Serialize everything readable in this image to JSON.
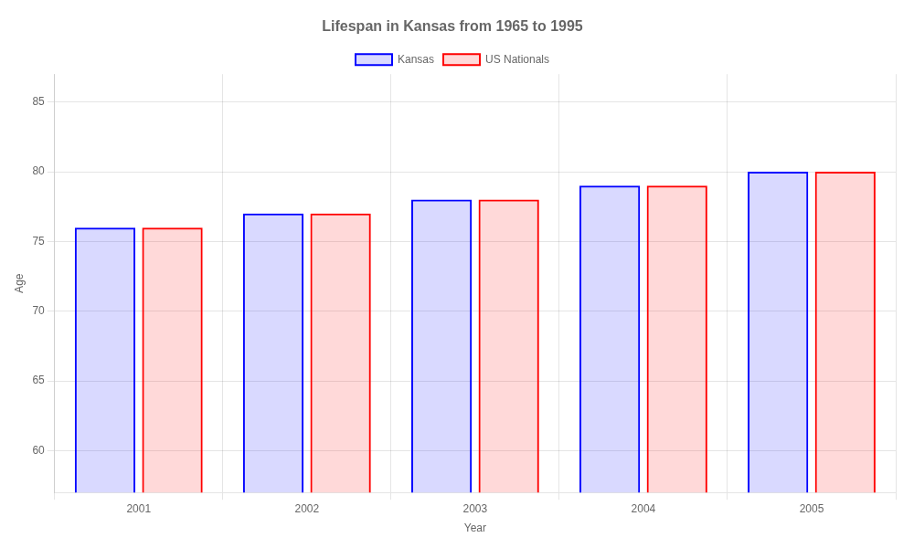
{
  "chart_data": {
    "type": "bar",
    "title": "Lifespan in Kansas from 1965 to 1995",
    "xlabel": "Year",
    "ylabel": "Age",
    "categories": [
      "2001",
      "2002",
      "2003",
      "2004",
      "2005"
    ],
    "series": [
      {
        "name": "Kansas",
        "color": "#0000ff",
        "values": [
          76,
          77,
          78,
          79,
          80
        ]
      },
      {
        "name": "US Nationals",
        "color": "#ff0000",
        "values": [
          76,
          77,
          78,
          79,
          80
        ]
      }
    ],
    "ylim": [
      57,
      87
    ],
    "yticks": [
      60,
      65,
      70,
      75,
      80,
      85
    ],
    "grid": true,
    "legend": "top"
  }
}
